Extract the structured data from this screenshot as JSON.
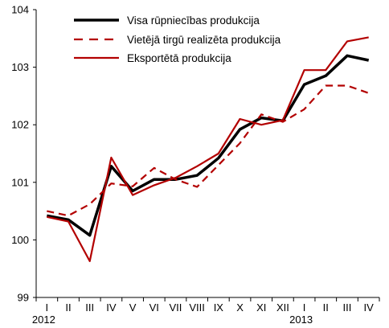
{
  "chart_data": {
    "type": "line",
    "categories": [
      "I",
      "II",
      "III",
      "IV",
      "V",
      "VI",
      "VII",
      "VIII",
      "IX",
      "X",
      "XI",
      "XII",
      "I",
      "II",
      "III",
      "IV"
    ],
    "year_labels": [
      {
        "label": "2012",
        "category_index": 0
      },
      {
        "label": "2013",
        "category_index": 12
      }
    ],
    "ylim": [
      99,
      104
    ],
    "yticks": [
      99,
      100,
      101,
      102,
      103,
      104
    ],
    "grid": false,
    "legend_position": "top-left",
    "series": [
      {
        "name": "Visa rūpniecības produkcija",
        "color": "#000000",
        "style": "solid-thick",
        "values": [
          100.42,
          100.35,
          100.08,
          101.28,
          100.85,
          101.05,
          101.05,
          101.12,
          101.42,
          101.92,
          102.12,
          102.07,
          102.7,
          102.85,
          103.2,
          103.12
        ]
      },
      {
        "name": "Vietējā tirgū realizēta produkcija",
        "color": "#b30000",
        "style": "dashed",
        "values": [
          100.5,
          100.42,
          100.62,
          100.98,
          100.93,
          101.25,
          101.05,
          100.92,
          101.3,
          101.68,
          102.18,
          102.05,
          102.27,
          102.68,
          102.68,
          102.55
        ]
      },
      {
        "name": "Eksportētā produkcija",
        "color": "#b30000",
        "style": "solid",
        "values": [
          100.4,
          100.32,
          99.63,
          101.43,
          100.78,
          100.95,
          101.08,
          101.28,
          101.5,
          102.1,
          102.0,
          102.08,
          102.95,
          102.95,
          103.45,
          103.52
        ]
      }
    ]
  }
}
